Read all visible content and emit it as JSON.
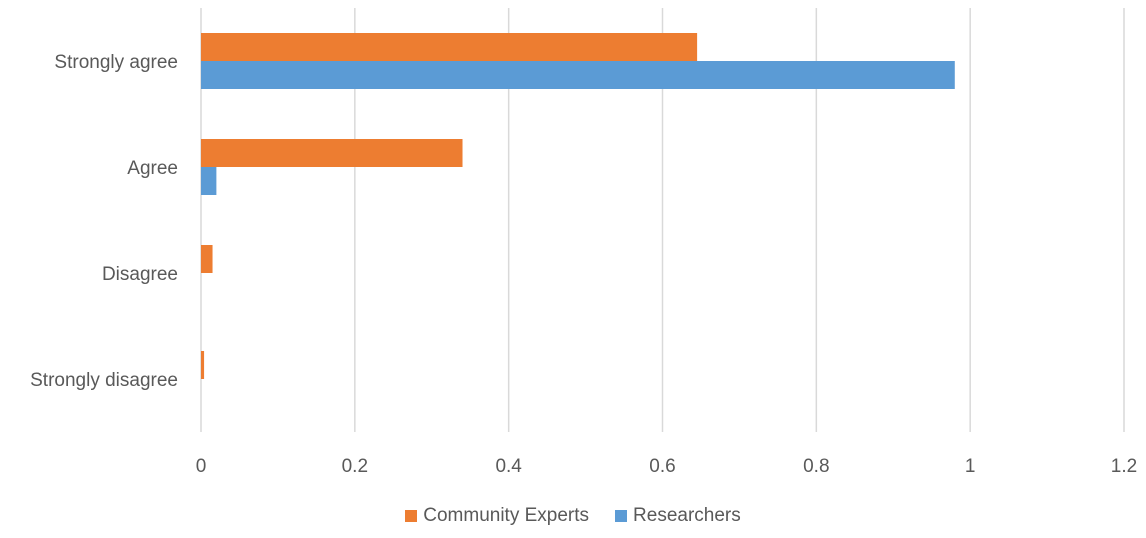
{
  "chart_data": {
    "type": "bar",
    "orientation": "horizontal",
    "categories": [
      "Strongly agree",
      "Agree",
      "Disagree",
      "Strongly disagree"
    ],
    "series": [
      {
        "name": "Community Experts",
        "color": "#ED7D31",
        "values": [
          0.645,
          0.34,
          0.015,
          0.004
        ]
      },
      {
        "name": "Researchers",
        "color": "#5B9BD5",
        "values": [
          0.98,
          0.02,
          0,
          0
        ]
      }
    ],
    "xlim": [
      0,
      1.2
    ],
    "xticks": [
      "0",
      "0.2",
      "0.4",
      "0.6",
      "0.8",
      "1",
      "1.2"
    ],
    "grid": "vertical",
    "legend_position": "bottom"
  }
}
